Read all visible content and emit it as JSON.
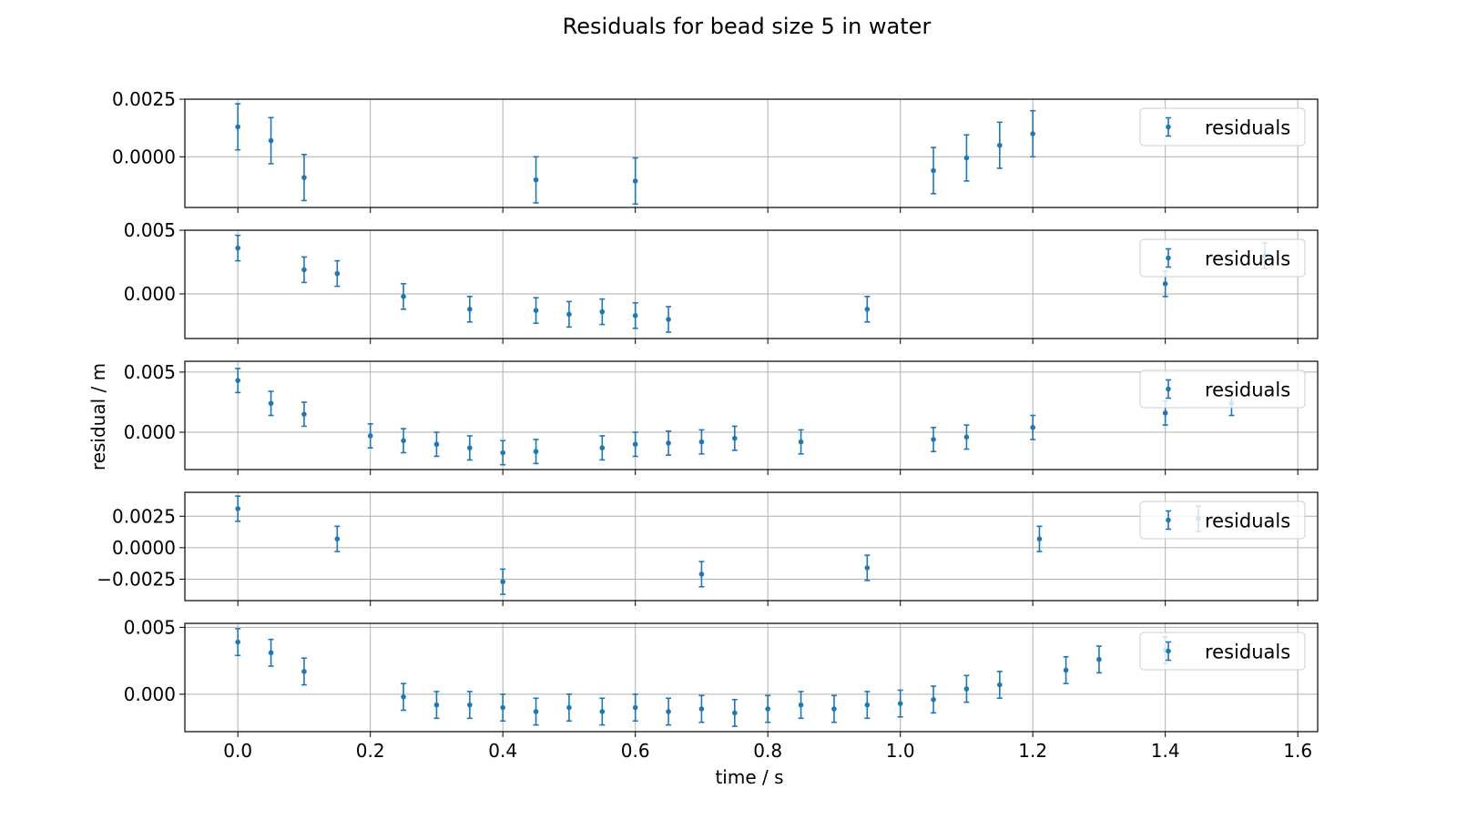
{
  "chart_data": {
    "type": "scatter",
    "title": "Residuals for bead  size 5 in water",
    "xlabel": "time / s",
    "ylabel": "residual / m",
    "xlim": [
      -0.08,
      1.63
    ],
    "x_ticks": [
      0.0,
      0.2,
      0.4,
      0.6,
      0.8,
      1.0,
      1.2,
      1.4,
      1.6
    ],
    "x_tick_labels": [
      "0.0",
      "0.2",
      "0.4",
      "0.6",
      "0.8",
      "1.0",
      "1.2",
      "1.4",
      "1.6"
    ],
    "grid": true,
    "legend_placement": "top-right",
    "marker_color": "#1f77b4",
    "panels": [
      {
        "ylim": [
          -0.0022,
          0.0025
        ],
        "y_ticks": [
          0.0025,
          0.0
        ],
        "y_tick_labels": [
          "0.0025",
          "0.0000"
        ],
        "series": [
          {
            "name": "residuals",
            "error": 0.001,
            "points": [
              [
                0.0,
                0.0013
              ],
              [
                0.05,
                0.0007
              ],
              [
                0.1,
                -0.0009
              ],
              [
                0.45,
                -0.001
              ],
              [
                0.6,
                -0.00105
              ],
              [
                1.05,
                -0.0006
              ],
              [
                1.1,
                -5e-05
              ],
              [
                1.15,
                0.0005
              ],
              [
                1.2,
                0.001
              ]
            ]
          }
        ]
      },
      {
        "ylim": [
          -0.0035,
          0.005
        ],
        "y_ticks": [
          0.005,
          0.0
        ],
        "y_tick_labels": [
          "0.005",
          "0.000"
        ],
        "series": [
          {
            "name": "residuals",
            "error": 0.001,
            "points": [
              [
                0.0,
                0.0036
              ],
              [
                0.1,
                0.0019
              ],
              [
                0.15,
                0.0016
              ],
              [
                0.25,
                -0.0002
              ],
              [
                0.35,
                -0.0012
              ],
              [
                0.45,
                -0.0013
              ],
              [
                0.5,
                -0.0016
              ],
              [
                0.55,
                -0.0014
              ],
              [
                0.6,
                -0.0017
              ],
              [
                0.65,
                -0.002
              ],
              [
                0.95,
                -0.0012
              ],
              [
                1.4,
                0.0008
              ],
              [
                1.55,
                0.003
              ]
            ]
          }
        ]
      },
      {
        "ylim": [
          -0.0031,
          0.0059
        ],
        "y_ticks": [
          0.005,
          0.0
        ],
        "y_tick_labels": [
          "0.005",
          "0.000"
        ],
        "series": [
          {
            "name": "residuals",
            "error": 0.001,
            "points": [
              [
                0.0,
                0.0043
              ],
              [
                0.05,
                0.0024
              ],
              [
                0.1,
                0.0015
              ],
              [
                0.2,
                -0.0003
              ],
              [
                0.25,
                -0.0007
              ],
              [
                0.3,
                -0.001
              ],
              [
                0.35,
                -0.0013
              ],
              [
                0.4,
                -0.0017
              ],
              [
                0.45,
                -0.0016
              ],
              [
                0.55,
                -0.0013
              ],
              [
                0.6,
                -0.001
              ],
              [
                0.65,
                -0.0009
              ],
              [
                0.7,
                -0.0008
              ],
              [
                0.75,
                -0.0005
              ],
              [
                0.85,
                -0.0008
              ],
              [
                1.05,
                -0.0006
              ],
              [
                1.1,
                -0.0004
              ],
              [
                1.2,
                0.0004
              ],
              [
                1.4,
                0.0016
              ],
              [
                1.5,
                0.0024
              ]
            ]
          }
        ]
      },
      {
        "ylim": [
          -0.0042,
          0.0044
        ],
        "y_ticks": [
          0.0025,
          0.0,
          -0.0025
        ],
        "y_tick_labels": [
          "0.0025",
          "0.0000",
          "−0.0025"
        ],
        "series": [
          {
            "name": "residuals",
            "error": 0.001,
            "points": [
              [
                0.0,
                0.0031
              ],
              [
                0.15,
                0.0007
              ],
              [
                0.4,
                -0.0027
              ],
              [
                0.7,
                -0.0021
              ],
              [
                0.95,
                -0.0016
              ],
              [
                1.21,
                0.0007
              ],
              [
                1.45,
                0.0023
              ]
            ]
          }
        ]
      },
      {
        "ylim": [
          -0.0028,
          0.0053
        ],
        "y_ticks": [
          0.005,
          0.0
        ],
        "y_tick_labels": [
          "0.005",
          "0.000"
        ],
        "series": [
          {
            "name": "residuals",
            "error": 0.001,
            "points": [
              [
                0.0,
                0.0039
              ],
              [
                0.05,
                0.0031
              ],
              [
                0.1,
                0.0017
              ],
              [
                0.25,
                -0.0002
              ],
              [
                0.3,
                -0.0008
              ],
              [
                0.35,
                -0.0008
              ],
              [
                0.4,
                -0.001
              ],
              [
                0.45,
                -0.0013
              ],
              [
                0.5,
                -0.001
              ],
              [
                0.55,
                -0.0013
              ],
              [
                0.6,
                -0.001
              ],
              [
                0.65,
                -0.0013
              ],
              [
                0.7,
                -0.0011
              ],
              [
                0.75,
                -0.0014
              ],
              [
                0.8,
                -0.0011
              ],
              [
                0.85,
                -0.0008
              ],
              [
                0.9,
                -0.0011
              ],
              [
                0.95,
                -0.0008
              ],
              [
                1.0,
                -0.0007
              ],
              [
                1.05,
                -0.0004
              ],
              [
                1.1,
                0.0004
              ],
              [
                1.15,
                0.0007
              ],
              [
                1.25,
                0.0018
              ],
              [
                1.3,
                0.0026
              ],
              [
                1.4,
                0.0033
              ]
            ]
          }
        ]
      }
    ]
  }
}
